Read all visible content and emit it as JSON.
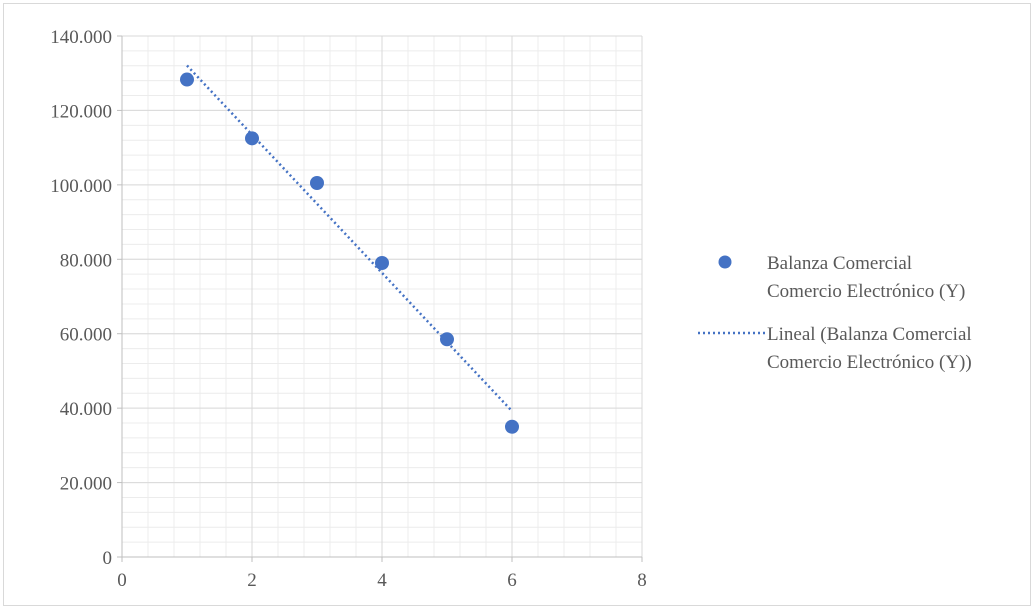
{
  "chart_data": {
    "type": "scatter",
    "title": "",
    "xlabel": "",
    "ylabel": "",
    "xlim": [
      0,
      8
    ],
    "ylim": [
      0,
      140000
    ],
    "x_ticks": [
      0,
      2,
      4,
      6,
      8
    ],
    "x_tick_labels": [
      "0",
      "2",
      "4",
      "6",
      "8"
    ],
    "y_ticks": [
      0,
      20000,
      40000,
      60000,
      80000,
      100000,
      120000,
      140000
    ],
    "y_tick_labels": [
      "0",
      "20.000",
      "40.000",
      "60.000",
      "80.000",
      "100.000",
      "120.000",
      "140.000"
    ],
    "grid": true,
    "minor_grid": true,
    "legend_position": "right",
    "series": [
      {
        "name": "Balanza Comercial Comercio Electrónico (Y)",
        "name_lines": [
          "Balanza Comercial",
          "Comercio Electrónico (Y)"
        ],
        "color": "#4472c4",
        "x": [
          1,
          2,
          3,
          4,
          5,
          6
        ],
        "y": [
          128300,
          112500,
          100500,
          79000,
          58500,
          35000
        ]
      }
    ],
    "trendline": {
      "name": "Lineal (Balanza Comercial Comercio Electrónico (Y))",
      "name_lines": [
        "Lineal (Balanza Comercial",
        "Comercio Electrónico (Y))"
      ],
      "type": "linear",
      "style": "dotted",
      "color": "#4472c4",
      "x_range": [
        1,
        6
      ]
    }
  }
}
